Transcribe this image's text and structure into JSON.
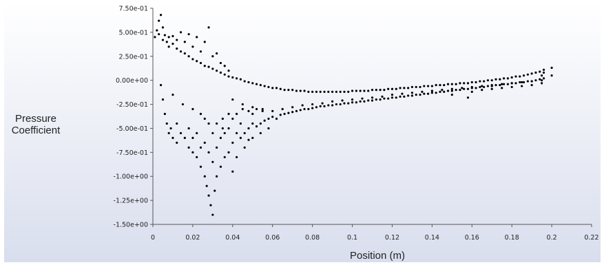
{
  "chart_data": {
    "type": "scatter",
    "title": "",
    "xlabel": "Position (m)",
    "ylabel": [
      "Pressure",
      "Coefficient"
    ],
    "xlim": [
      0,
      0.22
    ],
    "ylim": [
      -1.5,
      0.75
    ],
    "xticks": [
      0,
      0.02,
      0.04,
      0.06,
      0.08,
      0.1,
      0.12,
      0.14,
      0.16,
      0.18,
      0.2,
      0.22
    ],
    "xtick_labels": [
      "0",
      "0.02",
      "0.04",
      "0.06",
      "0.08",
      "0.1",
      "0.12",
      "0.14",
      "0.16",
      "0.18",
      "0.2",
      "0.22"
    ],
    "yticks": [
      0.75,
      0.5,
      0.25,
      0,
      -0.25,
      -0.5,
      -0.75,
      -1.0,
      -1.25,
      -1.5
    ],
    "ytick_labels": [
      "7.50e-01",
      "5.00e-01",
      "2.50e-01",
      "0.00e+00",
      "-2.50e-01",
      "-5.00e-01",
      "-7.50e-01",
      "-1.00e+00",
      "-1.25e+00",
      "-1.50e+00"
    ],
    "grid": false,
    "background": [
      "#ffffff",
      "#d9deee"
    ],
    "marker_color": "#000000",
    "series": [
      {
        "points": [
          [
            0.001,
            0.45
          ],
          [
            0.002,
            0.52
          ],
          [
            0.003,
            0.48
          ],
          [
            0.003,
            0.62
          ],
          [
            0.004,
            0.68
          ],
          [
            0.005,
            0.55
          ],
          [
            0.005,
            0.42
          ],
          [
            0.006,
            0.47
          ],
          [
            0.007,
            0.4
          ],
          [
            0.008,
            0.45
          ],
          [
            0.008,
            0.35
          ],
          [
            0.01,
            0.38
          ],
          [
            0.01,
            0.46
          ],
          [
            0.012,
            0.33
          ],
          [
            0.012,
            0.42
          ],
          [
            0.014,
            0.3
          ],
          [
            0.014,
            0.5
          ],
          [
            0.016,
            0.28
          ],
          [
            0.016,
            0.4
          ],
          [
            0.018,
            0.25
          ],
          [
            0.018,
            0.48
          ],
          [
            0.02,
            0.22
          ],
          [
            0.02,
            0.35
          ],
          [
            0.022,
            0.2
          ],
          [
            0.022,
            0.45
          ],
          [
            0.024,
            0.18
          ],
          [
            0.024,
            0.3
          ],
          [
            0.026,
            0.15
          ],
          [
            0.026,
            0.4
          ],
          [
            0.028,
            0.14
          ],
          [
            0.028,
            0.55
          ],
          [
            0.03,
            0.12
          ],
          [
            0.03,
            0.25
          ],
          [
            0.032,
            0.1
          ],
          [
            0.032,
            0.28
          ],
          [
            0.034,
            0.08
          ],
          [
            0.034,
            0.18
          ],
          [
            0.036,
            0.06
          ],
          [
            0.036,
            0.15
          ],
          [
            0.038,
            0.04
          ],
          [
            0.038,
            0.1
          ],
          [
            0.04,
            0.03
          ],
          [
            0.042,
            0.02
          ],
          [
            0.044,
            0.01
          ],
          [
            0.046,
            -0.01
          ],
          [
            0.048,
            -0.02
          ],
          [
            0.05,
            -0.03
          ],
          [
            0.052,
            -0.04
          ],
          [
            0.054,
            -0.05
          ],
          [
            0.056,
            -0.06
          ],
          [
            0.058,
            -0.07
          ],
          [
            0.06,
            -0.08
          ],
          [
            0.062,
            -0.08
          ],
          [
            0.064,
            -0.09
          ],
          [
            0.066,
            -0.1
          ],
          [
            0.068,
            -0.1
          ],
          [
            0.07,
            -0.1
          ],
          [
            0.072,
            -0.11
          ],
          [
            0.074,
            -0.11
          ],
          [
            0.076,
            -0.11
          ],
          [
            0.078,
            -0.12
          ],
          [
            0.08,
            -0.12
          ],
          [
            0.082,
            -0.12
          ],
          [
            0.084,
            -0.12
          ],
          [
            0.086,
            -0.12
          ],
          [
            0.088,
            -0.12
          ],
          [
            0.09,
            -0.12
          ],
          [
            0.092,
            -0.12
          ],
          [
            0.094,
            -0.12
          ],
          [
            0.096,
            -0.12
          ],
          [
            0.098,
            -0.12
          ],
          [
            0.1,
            -0.11
          ],
          [
            0.102,
            -0.11
          ],
          [
            0.104,
            -0.11
          ],
          [
            0.106,
            -0.11
          ],
          [
            0.108,
            -0.11
          ],
          [
            0.11,
            -0.1
          ],
          [
            0.112,
            -0.1
          ],
          [
            0.114,
            -0.1
          ],
          [
            0.116,
            -0.1
          ],
          [
            0.118,
            -0.09
          ],
          [
            0.12,
            -0.09
          ],
          [
            0.122,
            -0.09
          ],
          [
            0.124,
            -0.08
          ],
          [
            0.126,
            -0.08
          ],
          [
            0.128,
            -0.08
          ],
          [
            0.13,
            -0.07
          ],
          [
            0.132,
            -0.07
          ],
          [
            0.134,
            -0.07
          ],
          [
            0.136,
            -0.06
          ],
          [
            0.138,
            -0.06
          ],
          [
            0.14,
            -0.06
          ],
          [
            0.142,
            -0.05
          ],
          [
            0.144,
            -0.05
          ],
          [
            0.146,
            -0.05
          ],
          [
            0.148,
            -0.04
          ],
          [
            0.15,
            -0.04
          ],
          [
            0.152,
            -0.04
          ],
          [
            0.154,
            -0.03
          ],
          [
            0.156,
            -0.03
          ],
          [
            0.158,
            -0.03
          ],
          [
            0.16,
            -0.02
          ],
          [
            0.162,
            -0.02
          ],
          [
            0.164,
            -0.01
          ],
          [
            0.166,
            -0.01
          ],
          [
            0.168,
            0.0
          ],
          [
            0.17,
            0.0
          ],
          [
            0.172,
            0.01
          ],
          [
            0.174,
            0.01
          ],
          [
            0.176,
            0.02
          ],
          [
            0.178,
            0.02
          ],
          [
            0.18,
            0.03
          ],
          [
            0.182,
            0.04
          ],
          [
            0.184,
            0.04
          ],
          [
            0.186,
            0.05
          ],
          [
            0.188,
            0.06
          ],
          [
            0.19,
            0.07
          ],
          [
            0.192,
            0.08
          ],
          [
            0.194,
            0.09
          ],
          [
            0.196,
            0.11
          ],
          [
            0.196,
            0.08
          ],
          [
            0.195,
            0.05
          ],
          [
            0.2,
            0.13
          ],
          [
            0.2,
            0.05
          ],
          [
            0.004,
            -0.05
          ],
          [
            0.005,
            -0.2
          ],
          [
            0.006,
            -0.35
          ],
          [
            0.007,
            -0.45
          ],
          [
            0.008,
            -0.55
          ],
          [
            0.009,
            -0.5
          ],
          [
            0.01,
            -0.6
          ],
          [
            0.012,
            -0.45
          ],
          [
            0.012,
            -0.65
          ],
          [
            0.014,
            -0.55
          ],
          [
            0.016,
            -0.6
          ],
          [
            0.018,
            -0.5
          ],
          [
            0.018,
            -0.7
          ],
          [
            0.02,
            -0.6
          ],
          [
            0.02,
            -0.75
          ],
          [
            0.022,
            -0.55
          ],
          [
            0.022,
            -0.8
          ],
          [
            0.024,
            -0.7
          ],
          [
            0.024,
            -0.9
          ],
          [
            0.026,
            -0.65
          ],
          [
            0.026,
            -1.0
          ],
          [
            0.027,
            -1.1
          ],
          [
            0.028,
            -0.75
          ],
          [
            0.028,
            -1.2
          ],
          [
            0.029,
            -1.3
          ],
          [
            0.03,
            -1.4
          ],
          [
            0.03,
            -0.85
          ],
          [
            0.031,
            -1.15
          ],
          [
            0.032,
            -0.7
          ],
          [
            0.032,
            -1.0
          ],
          [
            0.034,
            -0.6
          ],
          [
            0.034,
            -0.9
          ],
          [
            0.036,
            -0.55
          ],
          [
            0.036,
            -0.8
          ],
          [
            0.038,
            -0.5
          ],
          [
            0.038,
            -0.75
          ],
          [
            0.04,
            -0.65
          ],
          [
            0.04,
            -0.95
          ],
          [
            0.042,
            -0.55
          ],
          [
            0.042,
            -0.8
          ],
          [
            0.044,
            -0.6
          ],
          [
            0.044,
            -0.45
          ],
          [
            0.046,
            -0.55
          ],
          [
            0.046,
            -0.7
          ],
          [
            0.048,
            -0.5
          ],
          [
            0.048,
            -0.62
          ],
          [
            0.05,
            -0.45
          ],
          [
            0.05,
            -0.6
          ],
          [
            0.052,
            -0.48
          ],
          [
            0.054,
            -0.45
          ],
          [
            0.054,
            -0.55
          ],
          [
            0.056,
            -0.42
          ],
          [
            0.058,
            -0.4
          ],
          [
            0.058,
            -0.5
          ],
          [
            0.06,
            -0.38
          ],
          [
            0.062,
            -0.4
          ],
          [
            0.064,
            -0.36
          ],
          [
            0.066,
            -0.35
          ],
          [
            0.068,
            -0.34
          ],
          [
            0.07,
            -0.33
          ],
          [
            0.072,
            -0.32
          ],
          [
            0.074,
            -0.31
          ],
          [
            0.076,
            -0.3
          ],
          [
            0.078,
            -0.3
          ],
          [
            0.08,
            -0.29
          ],
          [
            0.082,
            -0.28
          ],
          [
            0.084,
            -0.27
          ],
          [
            0.086,
            -0.27
          ],
          [
            0.088,
            -0.26
          ],
          [
            0.09,
            -0.26
          ],
          [
            0.092,
            -0.25
          ],
          [
            0.094,
            -0.25
          ],
          [
            0.096,
            -0.24
          ],
          [
            0.098,
            -0.24
          ],
          [
            0.1,
            -0.23
          ],
          [
            0.102,
            -0.23
          ],
          [
            0.104,
            -0.22
          ],
          [
            0.106,
            -0.22
          ],
          [
            0.108,
            -0.21
          ],
          [
            0.11,
            -0.21
          ],
          [
            0.112,
            -0.2
          ],
          [
            0.114,
            -0.2
          ],
          [
            0.116,
            -0.19
          ],
          [
            0.118,
            -0.19
          ],
          [
            0.12,
            -0.18
          ],
          [
            0.122,
            -0.18
          ],
          [
            0.124,
            -0.17
          ],
          [
            0.126,
            -0.17
          ],
          [
            0.128,
            -0.16
          ],
          [
            0.13,
            -0.16
          ],
          [
            0.132,
            -0.15
          ],
          [
            0.134,
            -0.15
          ],
          [
            0.136,
            -0.14
          ],
          [
            0.138,
            -0.14
          ],
          [
            0.14,
            -0.13
          ],
          [
            0.142,
            -0.13
          ],
          [
            0.144,
            -0.12
          ],
          [
            0.146,
            -0.12
          ],
          [
            0.148,
            -0.11
          ],
          [
            0.15,
            -0.11
          ],
          [
            0.152,
            -0.1
          ],
          [
            0.154,
            -0.1
          ],
          [
            0.156,
            -0.09
          ],
          [
            0.158,
            -0.09
          ],
          [
            0.16,
            -0.08
          ],
          [
            0.162,
            -0.08
          ],
          [
            0.164,
            -0.07
          ],
          [
            0.166,
            -0.07
          ],
          [
            0.168,
            -0.06
          ],
          [
            0.17,
            -0.06
          ],
          [
            0.172,
            -0.05
          ],
          [
            0.174,
            -0.05
          ],
          [
            0.176,
            -0.04
          ],
          [
            0.178,
            -0.04
          ],
          [
            0.18,
            -0.03
          ],
          [
            0.182,
            -0.03
          ],
          [
            0.184,
            -0.02
          ],
          [
            0.186,
            -0.02
          ],
          [
            0.188,
            -0.01
          ],
          [
            0.19,
            -0.01
          ],
          [
            0.192,
            0.0
          ],
          [
            0.194,
            0.01
          ],
          [
            0.196,
            0.02
          ],
          [
            0.04,
            -0.2
          ],
          [
            0.045,
            -0.25
          ],
          [
            0.05,
            -0.28
          ],
          [
            0.055,
            -0.3
          ],
          [
            0.06,
            -0.32
          ],
          [
            0.065,
            -0.3
          ],
          [
            0.07,
            -0.28
          ],
          [
            0.075,
            -0.26
          ],
          [
            0.08,
            -0.25
          ],
          [
            0.085,
            -0.24
          ],
          [
            0.09,
            -0.22
          ],
          [
            0.095,
            -0.21
          ],
          [
            0.1,
            -0.2
          ],
          [
            0.105,
            -0.19
          ],
          [
            0.11,
            -0.18
          ],
          [
            0.115,
            -0.17
          ],
          [
            0.12,
            -0.15
          ],
          [
            0.125,
            -0.14
          ],
          [
            0.13,
            -0.13
          ],
          [
            0.135,
            -0.12
          ],
          [
            0.14,
            -0.11
          ],
          [
            0.145,
            -0.1
          ],
          [
            0.15,
            -0.09
          ],
          [
            0.155,
            -0.08
          ],
          [
            0.16,
            -0.07
          ],
          [
            0.165,
            -0.06
          ],
          [
            0.17,
            -0.05
          ],
          [
            0.175,
            -0.04
          ],
          [
            0.18,
            -0.03
          ],
          [
            0.185,
            -0.02
          ],
          [
            0.19,
            -0.01
          ],
          [
            0.195,
            0.0
          ],
          [
            0.15,
            -0.15
          ],
          [
            0.158,
            -0.18
          ],
          [
            0.16,
            -0.12
          ],
          [
            0.165,
            -0.1
          ],
          [
            0.17,
            -0.09
          ],
          [
            0.175,
            -0.08
          ],
          [
            0.18,
            -0.07
          ],
          [
            0.185,
            -0.06
          ],
          [
            0.19,
            -0.05
          ],
          [
            0.195,
            -0.03
          ],
          [
            0.03,
            -0.55
          ],
          [
            0.032,
            -0.45
          ],
          [
            0.035,
            -0.5
          ],
          [
            0.035,
            -0.4
          ],
          [
            0.038,
            -0.35
          ],
          [
            0.04,
            -0.4
          ],
          [
            0.042,
            -0.35
          ],
          [
            0.045,
            -0.3
          ],
          [
            0.048,
            -0.32
          ],
          [
            0.05,
            -0.35
          ],
          [
            0.052,
            -0.3
          ],
          [
            0.055,
            -0.32
          ],
          [
            0.024,
            -0.35
          ],
          [
            0.026,
            -0.4
          ],
          [
            0.028,
            -0.45
          ],
          [
            0.02,
            -0.3
          ],
          [
            0.015,
            -0.25
          ],
          [
            0.01,
            -0.15
          ]
        ]
      }
    ]
  }
}
